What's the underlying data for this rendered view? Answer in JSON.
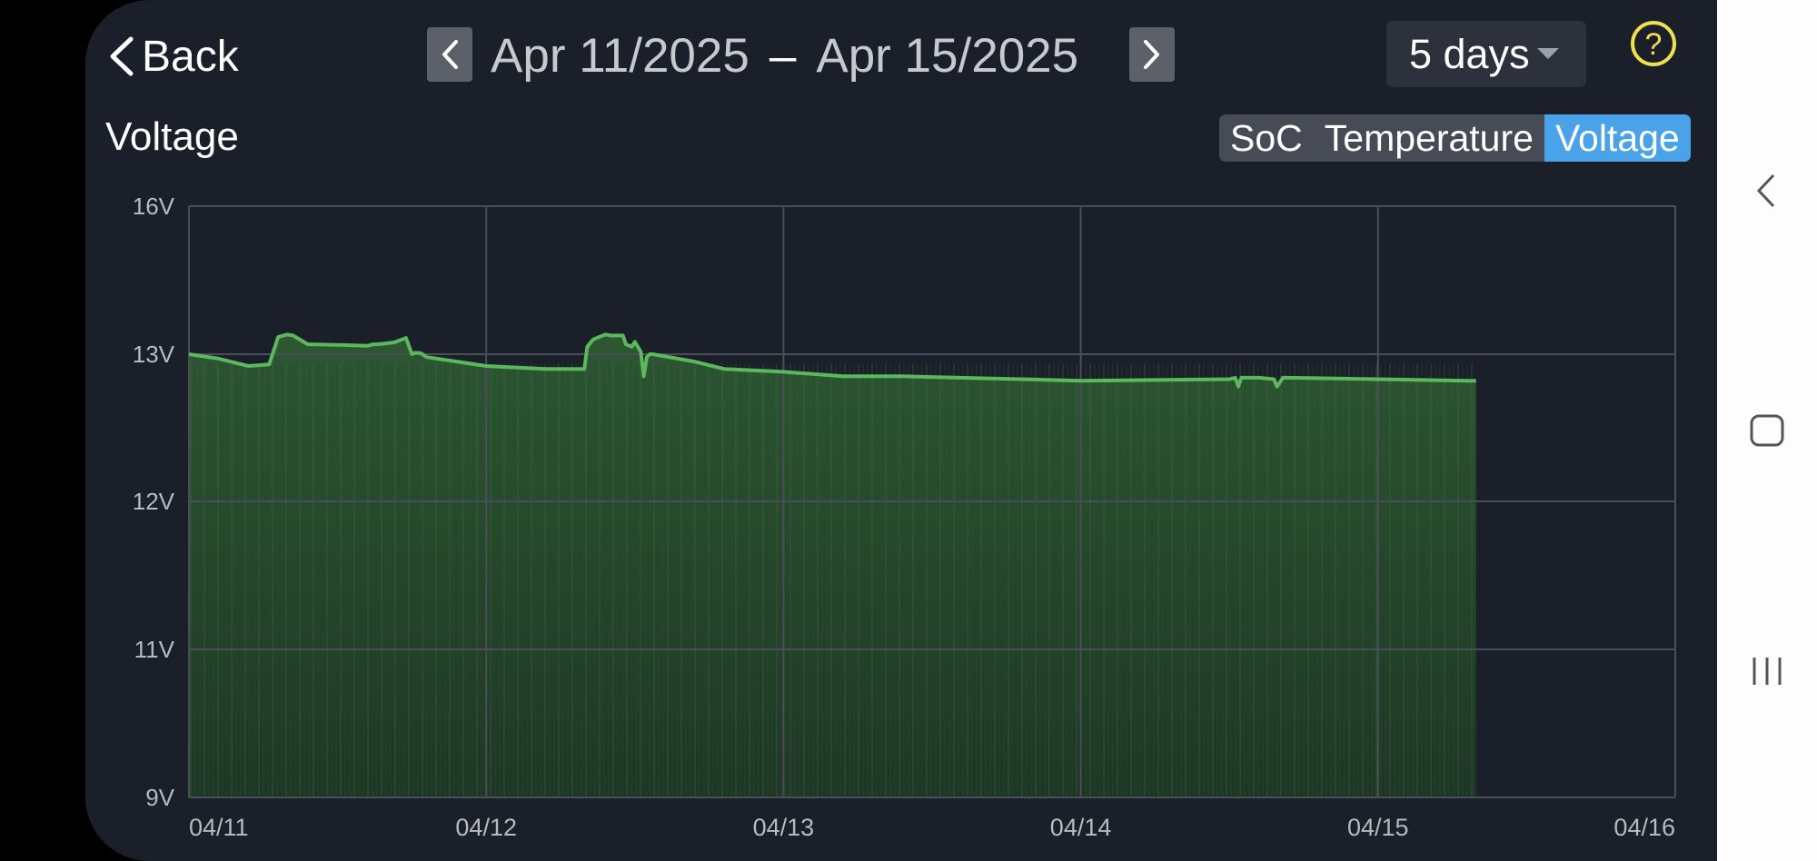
{
  "header": {
    "back_label": "Back",
    "date_start": "Apr 11/2025",
    "date_separator": "–",
    "date_end": "Apr 15/2025",
    "range_select": "5 days"
  },
  "page_title": "Voltage",
  "metric_tabs": [
    {
      "label": "SoC",
      "active": false
    },
    {
      "label": "Temperature",
      "active": false
    },
    {
      "label": "Voltage",
      "active": true
    }
  ],
  "colors": {
    "background": "#1b1f29",
    "line": "#5cb85c",
    "fill": "#2f5a33",
    "accent": "#4aa3e8",
    "help": "#f0e050"
  },
  "icons": {
    "back": "chevron-left-icon",
    "prev": "chevron-left-icon",
    "next": "chevron-right-icon",
    "dropdown": "caret-down-icon",
    "help": "question-circle-icon"
  },
  "system_nav": [
    "back-icon",
    "home-icon",
    "recents-icon"
  ],
  "chart_data": {
    "type": "area",
    "title": "Voltage",
    "ylim": [
      9,
      16
    ],
    "y_ticks": [
      9,
      11,
      12,
      13,
      16
    ],
    "y_tick_labels": [
      "9V",
      "11V",
      "12V",
      "13V",
      "16V"
    ],
    "x_domain_days": [
      0,
      5
    ],
    "x_ticks": [
      "04/11",
      "04/12",
      "04/13",
      "04/14",
      "04/15",
      "04/16"
    ],
    "grid": true,
    "series": [
      {
        "x": [
          0.0,
          0.1,
          0.2,
          0.27,
          0.3,
          0.33,
          0.35,
          0.4,
          0.41,
          0.5,
          0.6,
          0.62,
          0.63,
          0.65,
          0.69,
          0.73,
          0.75,
          0.76,
          0.78,
          0.8,
          1.0,
          1.2,
          1.33,
          1.34,
          1.36,
          1.4,
          1.42,
          1.46,
          1.47,
          1.49,
          1.5,
          1.52,
          1.53,
          1.54,
          1.55,
          1.56,
          1.7,
          1.8,
          2.0,
          2.2,
          2.4,
          3.0,
          3.5,
          3.52,
          3.53,
          3.54,
          3.6,
          3.65,
          3.66,
          3.68,
          3.7,
          4.0,
          4.3,
          4.33
        ],
        "y": [
          13.0,
          12.97,
          12.92,
          12.93,
          13.35,
          13.4,
          13.38,
          13.2,
          13.2,
          13.19,
          13.17,
          13.2,
          13.2,
          13.21,
          13.24,
          13.33,
          13.0,
          13.03,
          13.02,
          12.98,
          12.92,
          12.9,
          12.9,
          13.15,
          13.3,
          13.4,
          13.38,
          13.38,
          13.2,
          13.15,
          13.25,
          13.05,
          12.85,
          12.98,
          13.0,
          13.0,
          12.95,
          12.9,
          12.88,
          12.85,
          12.85,
          12.82,
          12.83,
          12.84,
          12.78,
          12.84,
          12.84,
          12.83,
          12.78,
          12.84,
          12.84,
          12.83,
          12.82,
          12.82
        ]
      }
    ]
  }
}
